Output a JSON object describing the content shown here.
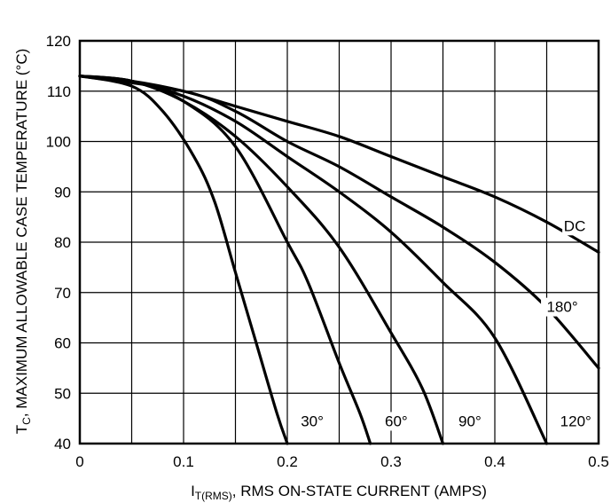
{
  "chart_data": {
    "type": "line",
    "xlabel_main": "I",
    "xlabel_sub": "T(RMS)",
    "xlabel_rest": ", RMS ON-STATE CURRENT (AMPS)",
    "ylabel_main": "T",
    "ylabel_sub": "C",
    "ylabel_rest": ", MAXIMUM ALLOWABLE CASE TEMPERATURE (°C)",
    "xlim": [
      0,
      0.5
    ],
    "ylim": [
      40,
      120
    ],
    "x_ticks": [
      "0",
      "0.1",
      "0.2",
      "0.3",
      "0.4",
      "0.5"
    ],
    "y_ticks": [
      "40",
      "50",
      "60",
      "70",
      "80",
      "90",
      "100",
      "110",
      "120"
    ],
    "grid": true,
    "series": [
      {
        "name": "30°",
        "label": "30°",
        "x": [
          0,
          0.05,
          0.08,
          0.11,
          0.13,
          0.15,
          0.17,
          0.19,
          0.2
        ],
        "y": [
          113,
          111,
          106,
          97,
          88,
          74,
          60,
          46,
          40
        ]
      },
      {
        "name": "60°",
        "label": "60°",
        "x": [
          0,
          0.05,
          0.1,
          0.15,
          0.2,
          0.22,
          0.25,
          0.27,
          0.28
        ],
        "y": [
          113,
          112,
          108,
          99,
          80,
          72,
          56,
          46,
          40
        ]
      },
      {
        "name": "90°",
        "label": "90°",
        "x": [
          0,
          0.05,
          0.1,
          0.15,
          0.2,
          0.25,
          0.3,
          0.33,
          0.35
        ],
        "y": [
          113,
          112,
          108,
          101,
          91,
          79,
          62,
          51,
          40
        ]
      },
      {
        "name": "120°",
        "label": "120°",
        "x": [
          0,
          0.05,
          0.1,
          0.15,
          0.2,
          0.25,
          0.3,
          0.35,
          0.4,
          0.45
        ],
        "y": [
          113,
          112,
          109,
          104,
          97,
          90,
          82,
          72,
          61,
          40
        ]
      },
      {
        "name": "180°",
        "label": "180°",
        "x": [
          0,
          0.1,
          0.15,
          0.2,
          0.25,
          0.3,
          0.35,
          0.4,
          0.45,
          0.5
        ],
        "y": [
          113,
          110,
          106,
          100,
          95,
          89,
          83,
          76,
          67,
          55
        ]
      },
      {
        "name": "DC",
        "label": "DC",
        "x": [
          0,
          0.05,
          0.1,
          0.15,
          0.2,
          0.25,
          0.3,
          0.35,
          0.4,
          0.45,
          0.5
        ],
        "y": [
          113,
          112,
          110,
          107,
          104,
          101,
          97,
          93,
          89,
          84,
          78
        ]
      }
    ]
  }
}
